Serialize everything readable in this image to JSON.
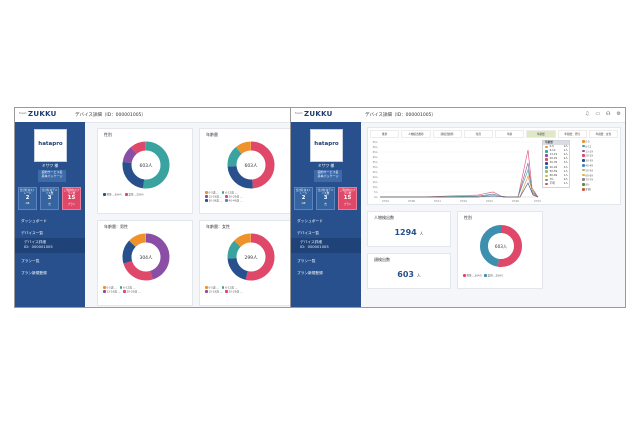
{
  "brand": {
    "small": "fresh",
    "name": "ZUKKU"
  },
  "colors": {
    "sidebar": "#27508c",
    "accent_pink": "#e04869",
    "teal": "#3aa3a0",
    "navy": "#27508c",
    "orange": "#f0922c",
    "pink": "#e04869",
    "purple": "#8a4fa4",
    "blue": "#4d86c6"
  },
  "left": {
    "page_title": "デバイス詳細（ID：000001005）",
    "user": {
      "logo": "hatapro",
      "name": "ミサワ 様"
    },
    "plan_badge": "契約サービス名\n基本パッケージ",
    "stats": [
      {
        "label": "合計有効ストレージ",
        "value": "2",
        "unit": "GB"
      },
      {
        "label": "合計有効デバイス数",
        "value": "3",
        "unit": "台"
      },
      {
        "label": "ご利用中のプラン数",
        "value": "15",
        "unit": "プラン"
      }
    ],
    "nav": [
      "ダッシュボード",
      "デバイス一覧",
      "デバイス詳細\nID：000001005",
      "プラン一覧",
      "プラン新規登録"
    ],
    "cards": [
      {
        "title": "性別",
        "center": "603人",
        "legend": [
          "男性…304人",
          "女性…299人"
        ]
      },
      {
        "title": "年齢層",
        "center": "603人",
        "legend": [
          "0-5歳 …",
          "6-12歳 …",
          "13-19歳 …",
          "20-29歳 …",
          "30-39歳 …",
          "40-49歳 …"
        ]
      },
      {
        "title": "年齢層：男性",
        "center": "304人",
        "legend": [
          "0-5歳 …",
          "6-12歳 …",
          "13-19歳 …",
          "20-29歳 …"
        ]
      },
      {
        "title": "年齢層：女性",
        "center": "299人",
        "legend": [
          "0-5歳 …",
          "6-12歳 …",
          "13-19歳 …",
          "20-29歳 …"
        ]
      }
    ]
  },
  "right": {
    "page_title": "デバイス詳細（ID：000001005）",
    "tabs": [
      "推移",
      "人物検出推移",
      "顔検出推移",
      "性別",
      "年齢",
      "年齢層",
      "年齢層：男性",
      "年齢層：女性"
    ],
    "y_ticks": [
      "55人",
      "50人",
      "45人",
      "40人",
      "35人",
      "30人",
      "25人",
      "20人",
      "15人",
      "10人",
      "5人",
      "0人"
    ],
    "x_ticks": [
      "07/01",
      "07/06",
      "07/11",
      "07/16",
      "07/21",
      "07/26",
      "07/31"
    ],
    "dropdown_header": "年齢層",
    "dropdown_items": [
      {
        "label": "0-5",
        "value": "0人"
      },
      {
        "label": "6-12",
        "value": "1人"
      },
      {
        "label": "13-19",
        "value": "2人"
      },
      {
        "label": "20-29",
        "value": "4人"
      },
      {
        "label": "30-39",
        "value": "3人"
      },
      {
        "label": "40-49",
        "value": "2人"
      },
      {
        "label": "50-59",
        "value": "1人"
      },
      {
        "label": "60-69",
        "value": "1人"
      },
      {
        "label": "70-",
        "value": "0人"
      },
      {
        "label": "不明",
        "value": "1人"
      }
    ],
    "legend_right": [
      "0-5",
      "6-12",
      "13-19",
      "20-29",
      "30-39",
      "40-49",
      "50-59",
      "60-69",
      "70-79",
      "80-",
      "不明"
    ],
    "person_card": {
      "title": "人物検出数",
      "value": "1294",
      "unit": "人"
    },
    "face_card": {
      "title": "顔検出数",
      "value": "603",
      "unit": "人"
    },
    "gender_card": {
      "title": "性別",
      "center": "603人",
      "legend": [
        "男性…304人",
        "女性…299人"
      ]
    }
  }
}
